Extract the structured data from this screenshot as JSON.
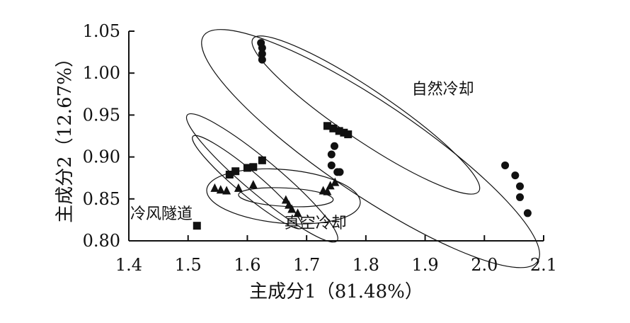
{
  "chart_data": {
    "type": "scatter",
    "xlabel": "主成分1（81.48%）",
    "ylabel": "主成分2（12.67%）",
    "xlim": [
      1.4,
      2.1
    ],
    "ylim": [
      0.8,
      1.05
    ],
    "x_ticks": [
      "1.4",
      "1.5",
      "1.6",
      "1.7",
      "1.8",
      "1.9",
      "2.0",
      "2.1"
    ],
    "y_ticks": [
      "0.80",
      "0.85",
      "0.90",
      "0.95",
      "1.00",
      "1.05"
    ],
    "grid": false,
    "series": [
      {
        "name": "自然冷却",
        "marker": "circle",
        "points": [
          [
            1.623,
            1.036
          ],
          [
            1.625,
            1.03
          ],
          [
            1.625,
            1.023
          ],
          [
            1.625,
            1.016
          ],
          [
            1.742,
            0.903
          ],
          [
            1.747,
            0.913
          ],
          [
            1.742,
            0.89
          ],
          [
            1.752,
            0.882
          ],
          [
            1.756,
            0.882
          ],
          [
            2.035,
            0.89
          ],
          [
            2.052,
            0.878
          ],
          [
            2.06,
            0.865
          ],
          [
            2.06,
            0.852
          ],
          [
            2.073,
            0.833
          ]
        ]
      },
      {
        "name": "冷风隧道",
        "marker": "square",
        "points": [
          [
            1.515,
            0.818
          ],
          [
            1.57,
            0.879
          ],
          [
            1.58,
            0.883
          ],
          [
            1.6,
            0.887
          ],
          [
            1.61,
            0.888
          ],
          [
            1.625,
            0.896
          ],
          [
            1.735,
            0.937
          ],
          [
            1.745,
            0.934
          ],
          [
            1.755,
            0.931
          ],
          [
            1.763,
            0.929
          ],
          [
            1.77,
            0.927
          ]
        ]
      },
      {
        "name": "真空冷却",
        "marker": "triangle",
        "points": [
          [
            1.545,
            0.863
          ],
          [
            1.555,
            0.861
          ],
          [
            1.565,
            0.86
          ],
          [
            1.585,
            0.863
          ],
          [
            1.61,
            0.867
          ],
          [
            1.665,
            0.849
          ],
          [
            1.67,
            0.843
          ],
          [
            1.675,
            0.838
          ],
          [
            1.685,
            0.833
          ],
          [
            1.728,
            0.86
          ],
          [
            1.735,
            0.859
          ],
          [
            1.74,
            0.866
          ],
          [
            1.748,
            0.87
          ]
        ]
      }
    ],
    "ellipses": [
      {
        "name": "自然冷却-outer",
        "cx": 1.808,
        "cy": 0.91,
        "rx": 0.34,
        "ry": 0.055,
        "angle_deg": 34
      },
      {
        "name": "自然冷却-inner",
        "cx": 1.8,
        "cy": 0.95,
        "rx": 0.23,
        "ry": 0.03,
        "angle_deg": 34
      },
      {
        "name": "冷风隧道-outer",
        "cx": 1.625,
        "cy": 0.875,
        "rx": 0.165,
        "ry": 0.02,
        "angle_deg": 40
      },
      {
        "name": "冷风隧道-inner",
        "cx": 1.6,
        "cy": 0.87,
        "rx": 0.12,
        "ry": 0.014,
        "angle_deg": 40
      },
      {
        "name": "真空冷却-outer",
        "cx": 1.661,
        "cy": 0.853,
        "rx": 0.13,
        "ry": 0.032,
        "angle_deg": 5
      },
      {
        "name": "真空冷却-inner",
        "cx": 1.665,
        "cy": 0.852,
        "rx": 0.08,
        "ry": 0.011,
        "angle_deg": 3
      }
    ],
    "annotations": [
      {
        "text": "自然冷却",
        "x": 1.93,
        "y": 0.975
      },
      {
        "text": "冷风隧道",
        "x": 1.455,
        "y": 0.826
      },
      {
        "text": "真空冷却",
        "x": 1.715,
        "y": 0.815
      }
    ]
  }
}
